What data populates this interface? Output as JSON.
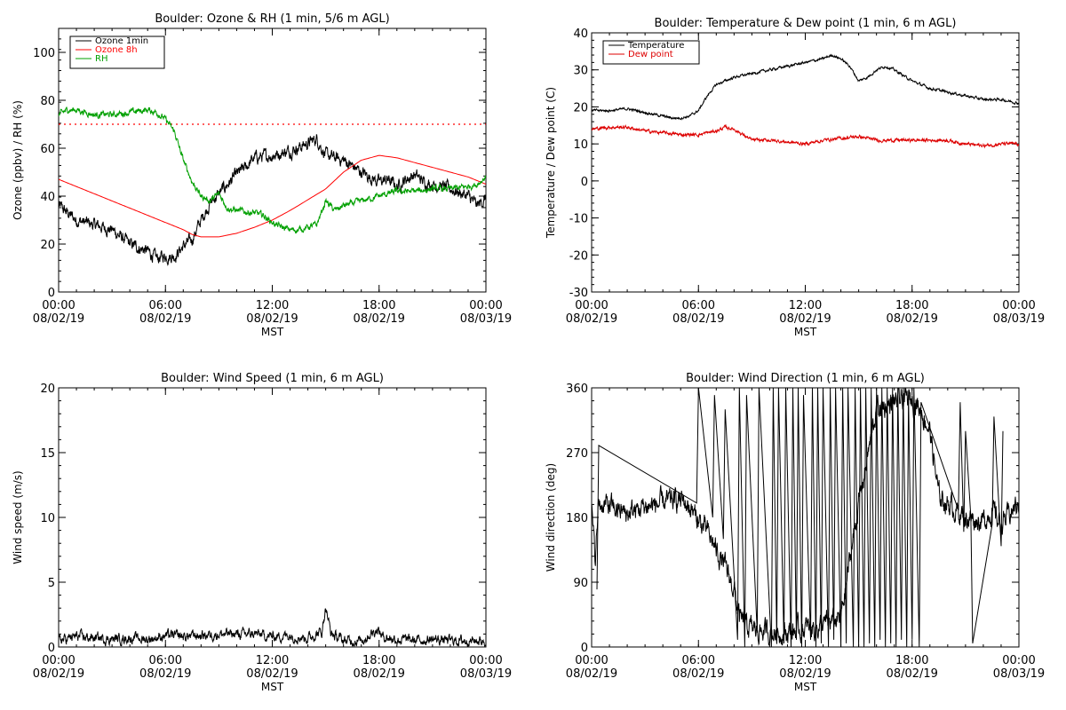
{
  "chart_data": [
    {
      "type": "line",
      "title": "Boulder: Ozone & RH (1 min, 5/6 m AGL)",
      "xlabel": "MST",
      "ylabel": "Ozone (ppbv) / RH (%)",
      "xlim": [
        0,
        24
      ],
      "ylim": [
        0,
        110
      ],
      "yticks": [
        0,
        20,
        40,
        60,
        80,
        100
      ],
      "xticks": [
        {
          "t": 0,
          "time": "00:00",
          "date": "08/02/19"
        },
        {
          "t": 6,
          "time": "06:00",
          "date": "08/02/19"
        },
        {
          "t": 12,
          "time": "12:00",
          "date": "08/02/19"
        },
        {
          "t": 18,
          "time": "18:00",
          "date": "08/02/19"
        },
        {
          "t": 24,
          "time": "00:00",
          "date": "08/03/19"
        }
      ],
      "legend": "top-left",
      "reference_line": {
        "y": 70,
        "style": "dotted",
        "color": "#ff0000"
      },
      "series": [
        {
          "name": "Ozone 1min",
          "color": "#000000",
          "noise": 3,
          "x": [
            0,
            1,
            2,
            3,
            4,
            5,
            5.5,
            6,
            6.5,
            7,
            7.5,
            8,
            8.5,
            9,
            9.5,
            10,
            10.5,
            11,
            12,
            13,
            14,
            14.5,
            15,
            15.5,
            16,
            17,
            17.5,
            18,
            18.5,
            19,
            19.5,
            20,
            20.5,
            21,
            22,
            23,
            23.5,
            24
          ],
          "y": [
            36,
            30,
            28,
            26,
            20,
            17,
            14,
            15,
            15,
            19,
            22,
            30,
            37,
            41,
            45,
            49,
            52,
            56,
            57,
            59,
            62,
            64,
            57,
            56,
            55,
            50,
            48,
            46,
            47,
            44,
            47,
            49,
            46,
            45,
            43,
            40,
            36,
            39
          ]
        },
        {
          "name": "Ozone 8h",
          "color": "#ff0000",
          "noise": 0,
          "x": [
            0,
            1,
            2,
            3,
            4,
            5,
            6,
            7,
            7.5,
            8,
            8.5,
            9,
            10,
            11,
            12,
            13,
            14,
            15,
            16,
            17,
            18,
            19,
            20,
            21,
            22,
            23,
            24
          ],
          "y": [
            47,
            44,
            41,
            38,
            35,
            32,
            29,
            26,
            24,
            23,
            23,
            23,
            24.5,
            27,
            30,
            34,
            38.5,
            43,
            50,
            55,
            57,
            56,
            54,
            52,
            50,
            48,
            45
          ]
        },
        {
          "name": "RH",
          "color": "#00a000",
          "noise": 1.5,
          "x": [
            0,
            0.5,
            1,
            2,
            3,
            4,
            5,
            5.5,
            6,
            6.5,
            7,
            7.5,
            8,
            8.5,
            9,
            9.5,
            10,
            11,
            11.5,
            12,
            12.5,
            13,
            13.5,
            14,
            14.5,
            15,
            15.5,
            16,
            17,
            18,
            19,
            20,
            21,
            22,
            23,
            23.5,
            24
          ],
          "y": [
            74,
            76,
            76,
            74,
            74,
            75,
            76,
            75,
            72,
            67,
            55,
            46,
            40,
            38,
            41,
            35,
            34,
            33,
            32,
            29,
            27,
            26,
            26,
            27,
            28,
            38,
            34,
            36,
            38,
            40,
            42,
            42,
            43,
            43,
            44,
            45,
            48
          ]
        }
      ]
    },
    {
      "type": "line",
      "title": "Boulder: Temperature & Dew point (1 min, 6 m AGL)",
      "xlabel": "MST",
      "ylabel": "Temperature / Dew point (C)",
      "xlim": [
        0,
        24
      ],
      "ylim": [
        -30,
        40
      ],
      "yticks": [
        -30,
        -20,
        -10,
        0,
        10,
        20,
        30,
        40
      ],
      "xticks": [
        {
          "t": 0,
          "time": "00:00",
          "date": "08/02/19"
        },
        {
          "t": 6,
          "time": "06:00",
          "date": "08/02/19"
        },
        {
          "t": 12,
          "time": "12:00",
          "date": "08/02/19"
        },
        {
          "t": 18,
          "time": "18:00",
          "date": "08/02/19"
        },
        {
          "t": 24,
          "time": "00:00",
          "date": "08/03/19"
        }
      ],
      "legend": "top-left",
      "series": [
        {
          "name": "Temperature",
          "color": "#000000",
          "noise": 0.4,
          "x": [
            0,
            1,
            2,
            3,
            4,
            4.5,
            5,
            5.5,
            6,
            6.5,
            7,
            7.5,
            8,
            9,
            10,
            11,
            12,
            13,
            13.5,
            14,
            14.5,
            15,
            15.5,
            16,
            16.5,
            17,
            18,
            19,
            20,
            21,
            22,
            23,
            24
          ],
          "y": [
            19,
            19,
            19.5,
            18.5,
            17.5,
            17,
            17,
            17.5,
            19,
            23,
            26,
            27,
            28,
            29,
            30,
            31,
            32,
            33,
            34,
            33,
            31,
            27,
            28,
            30,
            31,
            30,
            27,
            25,
            24,
            23,
            22,
            22,
            21
          ]
        },
        {
          "name": "Dew point",
          "color": "#dd0000",
          "noise": 0.5,
          "x": [
            0,
            1,
            2,
            3,
            4,
            5,
            6,
            7,
            7.5,
            8,
            8.5,
            9,
            10,
            11,
            12,
            13,
            14,
            15,
            16,
            17,
            18,
            19,
            20,
            21,
            22,
            23,
            24
          ],
          "y": [
            14,
            14.5,
            14.5,
            13.5,
            13,
            12.5,
            12.5,
            13.5,
            14.5,
            14,
            12.5,
            11,
            11,
            10.5,
            10,
            11,
            11.5,
            12,
            11,
            11,
            11,
            11,
            11,
            10,
            9.5,
            10,
            10
          ]
        }
      ]
    },
    {
      "type": "line",
      "title": "Boulder: Wind Speed (1 min, 6 m AGL)",
      "xlabel": "MST",
      "ylabel": "Wind speed (m/s)",
      "xlim": [
        0,
        24
      ],
      "ylim": [
        0,
        20
      ],
      "yticks": [
        0,
        5,
        10,
        15,
        20
      ],
      "xticks": [
        {
          "t": 0,
          "time": "00:00",
          "date": "08/02/19"
        },
        {
          "t": 6,
          "time": "06:00",
          "date": "08/02/19"
        },
        {
          "t": 12,
          "time": "12:00",
          "date": "08/02/19"
        },
        {
          "t": 18,
          "time": "18:00",
          "date": "08/02/19"
        },
        {
          "t": 24,
          "time": "00:00",
          "date": "08/03/19"
        }
      ],
      "series": [
        {
          "name": "",
          "color": "#000000",
          "noise": 0.45,
          "x": [
            0,
            1,
            2,
            3,
            4,
            5,
            6,
            7,
            8,
            9,
            10,
            11,
            12,
            13,
            14,
            14.8,
            15,
            15.3,
            16,
            17,
            17.9,
            18.2,
            19,
            20,
            21,
            22,
            23,
            24
          ],
          "y": [
            0.5,
            0.8,
            0.7,
            0.6,
            0.7,
            0.6,
            0.9,
            0.8,
            0.9,
            1.0,
            1.0,
            1.0,
            0.8,
            0.9,
            0.7,
            1.2,
            3.2,
            1.0,
            0.5,
            0.5,
            1.4,
            0.8,
            0.6,
            0.5,
            0.6,
            0.5,
            0.5,
            0.5
          ]
        }
      ]
    },
    {
      "type": "line",
      "title": "Boulder: Wind Direction (1 min, 6 m AGL)",
      "xlabel": "MST",
      "ylabel": "Wind direction (deg)",
      "xlim": [
        0,
        24
      ],
      "ylim": [
        0,
        360
      ],
      "yticks": [
        0,
        90,
        180,
        270,
        360
      ],
      "xticks": [
        {
          "t": 0,
          "time": "00:00",
          "date": "08/02/19"
        },
        {
          "t": 6,
          "time": "06:00",
          "date": "08/02/19"
        },
        {
          "t": 12,
          "time": "12:00",
          "date": "08/02/19"
        },
        {
          "t": 18,
          "time": "18:00",
          "date": "08/02/19"
        },
        {
          "t": 24,
          "time": "00:00",
          "date": "08/03/19"
        }
      ],
      "series": [
        {
          "name": "",
          "color": "#000000",
          "noise": 18,
          "x": [
            0,
            0.2,
            0.4,
            1,
            2,
            3,
            4,
            5,
            5.5,
            6,
            6.5,
            7,
            7.5,
            8,
            8.3,
            8.6,
            9,
            10,
            11,
            12,
            13,
            14,
            15,
            16,
            17,
            18,
            18.5,
            19,
            19.5,
            20,
            21,
            22,
            22.5,
            23,
            24
          ],
          "y": [
            190,
            120,
            200,
            195,
            185,
            195,
            200,
            205,
            195,
            175,
            160,
            135,
            110,
            80,
            40,
            30,
            25,
            20,
            20,
            25,
            30,
            40,
            200,
            330,
            340,
            345,
            330,
            300,
            210,
            200,
            180,
            175,
            190,
            170,
            200
          ]
        },
        {
          "name": "",
          "color": "#000000",
          "noise": 0,
          "spikes": true,
          "x": [
            0.3,
            0.4,
            5.9,
            6.0,
            6.8,
            6.9,
            7.4,
            7.5,
            8.2,
            8.3,
            8.6,
            8.7,
            9.3,
            9.4,
            10.1,
            10.2,
            10.4,
            10.5,
            10.8,
            10.9,
            11.2,
            11.3,
            11.5,
            11.6,
            11.8,
            11.9,
            12.3,
            12.4,
            12.6,
            12.7,
            12.9,
            13.0,
            13.3,
            13.4,
            13.6,
            13.7,
            14.0,
            14.1,
            14.3,
            14.4,
            14.7,
            14.8,
            15.0,
            15.1,
            15.3,
            15.4,
            15.6,
            15.7,
            15.9,
            16.0,
            16.2,
            16.3,
            16.5,
            16.6,
            16.8,
            16.9,
            17.1,
            17.2,
            17.4,
            17.5,
            17.7,
            17.8,
            18.0,
            18.1,
            18.4,
            18.5,
            20.6,
            20.7,
            20.9,
            21.0,
            21.3,
            21.4,
            22.5,
            22.6,
            23.0,
            23.1
          ],
          "y": [
            80,
            280,
            200,
            360,
            180,
            350,
            150,
            330,
            10,
            360,
            0,
            350,
            20,
            360,
            0,
            360,
            10,
            360,
            5,
            360,
            0,
            360,
            10,
            360,
            0,
            350,
            10,
            360,
            0,
            360,
            5,
            360,
            0,
            360,
            10,
            360,
            0,
            360,
            5,
            360,
            0,
            360,
            0,
            360,
            0,
            360,
            5,
            360,
            0,
            360,
            10,
            360,
            0,
            360,
            5,
            360,
            0,
            360,
            10,
            360,
            0,
            350,
            10,
            360,
            0,
            340,
            190,
            340,
            160,
            300,
            180,
            5,
            170,
            320,
            140,
            300
          ]
        }
      ]
    }
  ]
}
